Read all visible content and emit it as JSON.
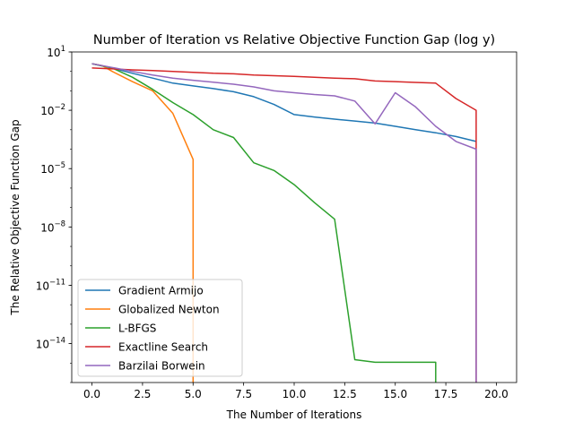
{
  "chart_data": {
    "type": "line",
    "title": "Number of Iteration vs Relative Objective Function Gap (log y)",
    "xlabel": "The Number of Iterations",
    "ylabel": "The Relative Objective Function Gap",
    "y_scale": "log",
    "xlim": [
      -1,
      21
    ],
    "ylim": [
      1e-16,
      10
    ],
    "x_ticks": [
      0,
      2.5,
      5,
      7.5,
      10,
      12.5,
      15,
      17.5,
      20
    ],
    "x_tick_labels": [
      "0.0",
      "2.5",
      "5.0",
      "7.5",
      "10.0",
      "12.5",
      "15.0",
      "17.5",
      "20.0"
    ],
    "y_ticks": [
      1e-14,
      1e-11,
      1e-08,
      1e-05,
      0.01,
      10
    ],
    "y_tick_bases": [
      "10",
      "10",
      "10",
      "10",
      "10",
      "10"
    ],
    "y_tick_exponents": [
      "−14",
      "−11",
      "−8",
      "−5",
      "−2",
      "1"
    ],
    "grid": false,
    "legend_position": "lower-left",
    "series": [
      {
        "name": "Gradient Armijo",
        "color": "#1f77b4",
        "x": [
          0,
          1,
          2,
          3,
          4,
          5,
          6,
          7,
          8,
          9,
          10,
          11,
          12,
          13,
          14,
          15,
          16,
          17,
          18,
          19
        ],
        "y": [
          2.5,
          1.5,
          0.8,
          0.45,
          0.25,
          0.18,
          0.13,
          0.09,
          0.05,
          0.02,
          0.006,
          0.0045,
          0.0035,
          0.0028,
          0.0022,
          0.0015,
          0.001,
          0.0007,
          0.00045,
          0.00025
        ]
      },
      {
        "name": "Globalized Newton",
        "color": "#ff7f0e",
        "x": [
          0,
          0.5,
          1,
          2,
          3,
          4,
          5,
          5
        ],
        "y": [
          2.5,
          2.0,
          1.0,
          0.3,
          0.1,
          0.007,
          3e-05,
          1e-16
        ]
      },
      {
        "name": "L-BFGS",
        "color": "#2ca02c",
        "x": [
          0,
          1,
          2,
          3,
          4,
          5,
          6,
          7,
          8,
          9,
          10,
          11,
          12,
          13,
          14,
          15,
          16,
          17,
          17
        ],
        "y": [
          2.5,
          1.5,
          0.5,
          0.12,
          0.025,
          0.006,
          0.001,
          0.0004,
          2e-05,
          8e-06,
          1.5e-06,
          1.8e-07,
          2.5e-08,
          1.5e-15,
          1.1e-15,
          1.1e-15,
          1.1e-15,
          1.1e-15,
          1e-16
        ]
      },
      {
        "name": "Exactline Search",
        "color": "#d62728",
        "x": [
          0,
          1,
          2,
          3,
          4,
          5,
          6,
          7,
          8,
          9,
          10,
          11,
          12,
          13,
          14,
          15,
          16,
          17,
          18,
          19,
          19
        ],
        "y": [
          1.5,
          1.35,
          1.2,
          1.1,
          1.0,
          0.9,
          0.8,
          0.75,
          0.65,
          0.6,
          0.55,
          0.5,
          0.45,
          0.42,
          0.32,
          0.3,
          0.27,
          0.25,
          0.04,
          0.01,
          1e-16
        ]
      },
      {
        "name": "Barzilai Borwein",
        "color": "#9467bd",
        "x": [
          0,
          1,
          2,
          3,
          4,
          5,
          6,
          7,
          8,
          9,
          10,
          11,
          12,
          13,
          14,
          15,
          16,
          17,
          18,
          19,
          19
        ],
        "y": [
          2.5,
          1.6,
          1.0,
          0.65,
          0.45,
          0.35,
          0.28,
          0.22,
          0.16,
          0.1,
          0.08,
          0.065,
          0.055,
          0.03,
          0.002,
          0.08,
          0.015,
          0.0015,
          0.00025,
          0.0001,
          1e-16
        ]
      }
    ]
  }
}
